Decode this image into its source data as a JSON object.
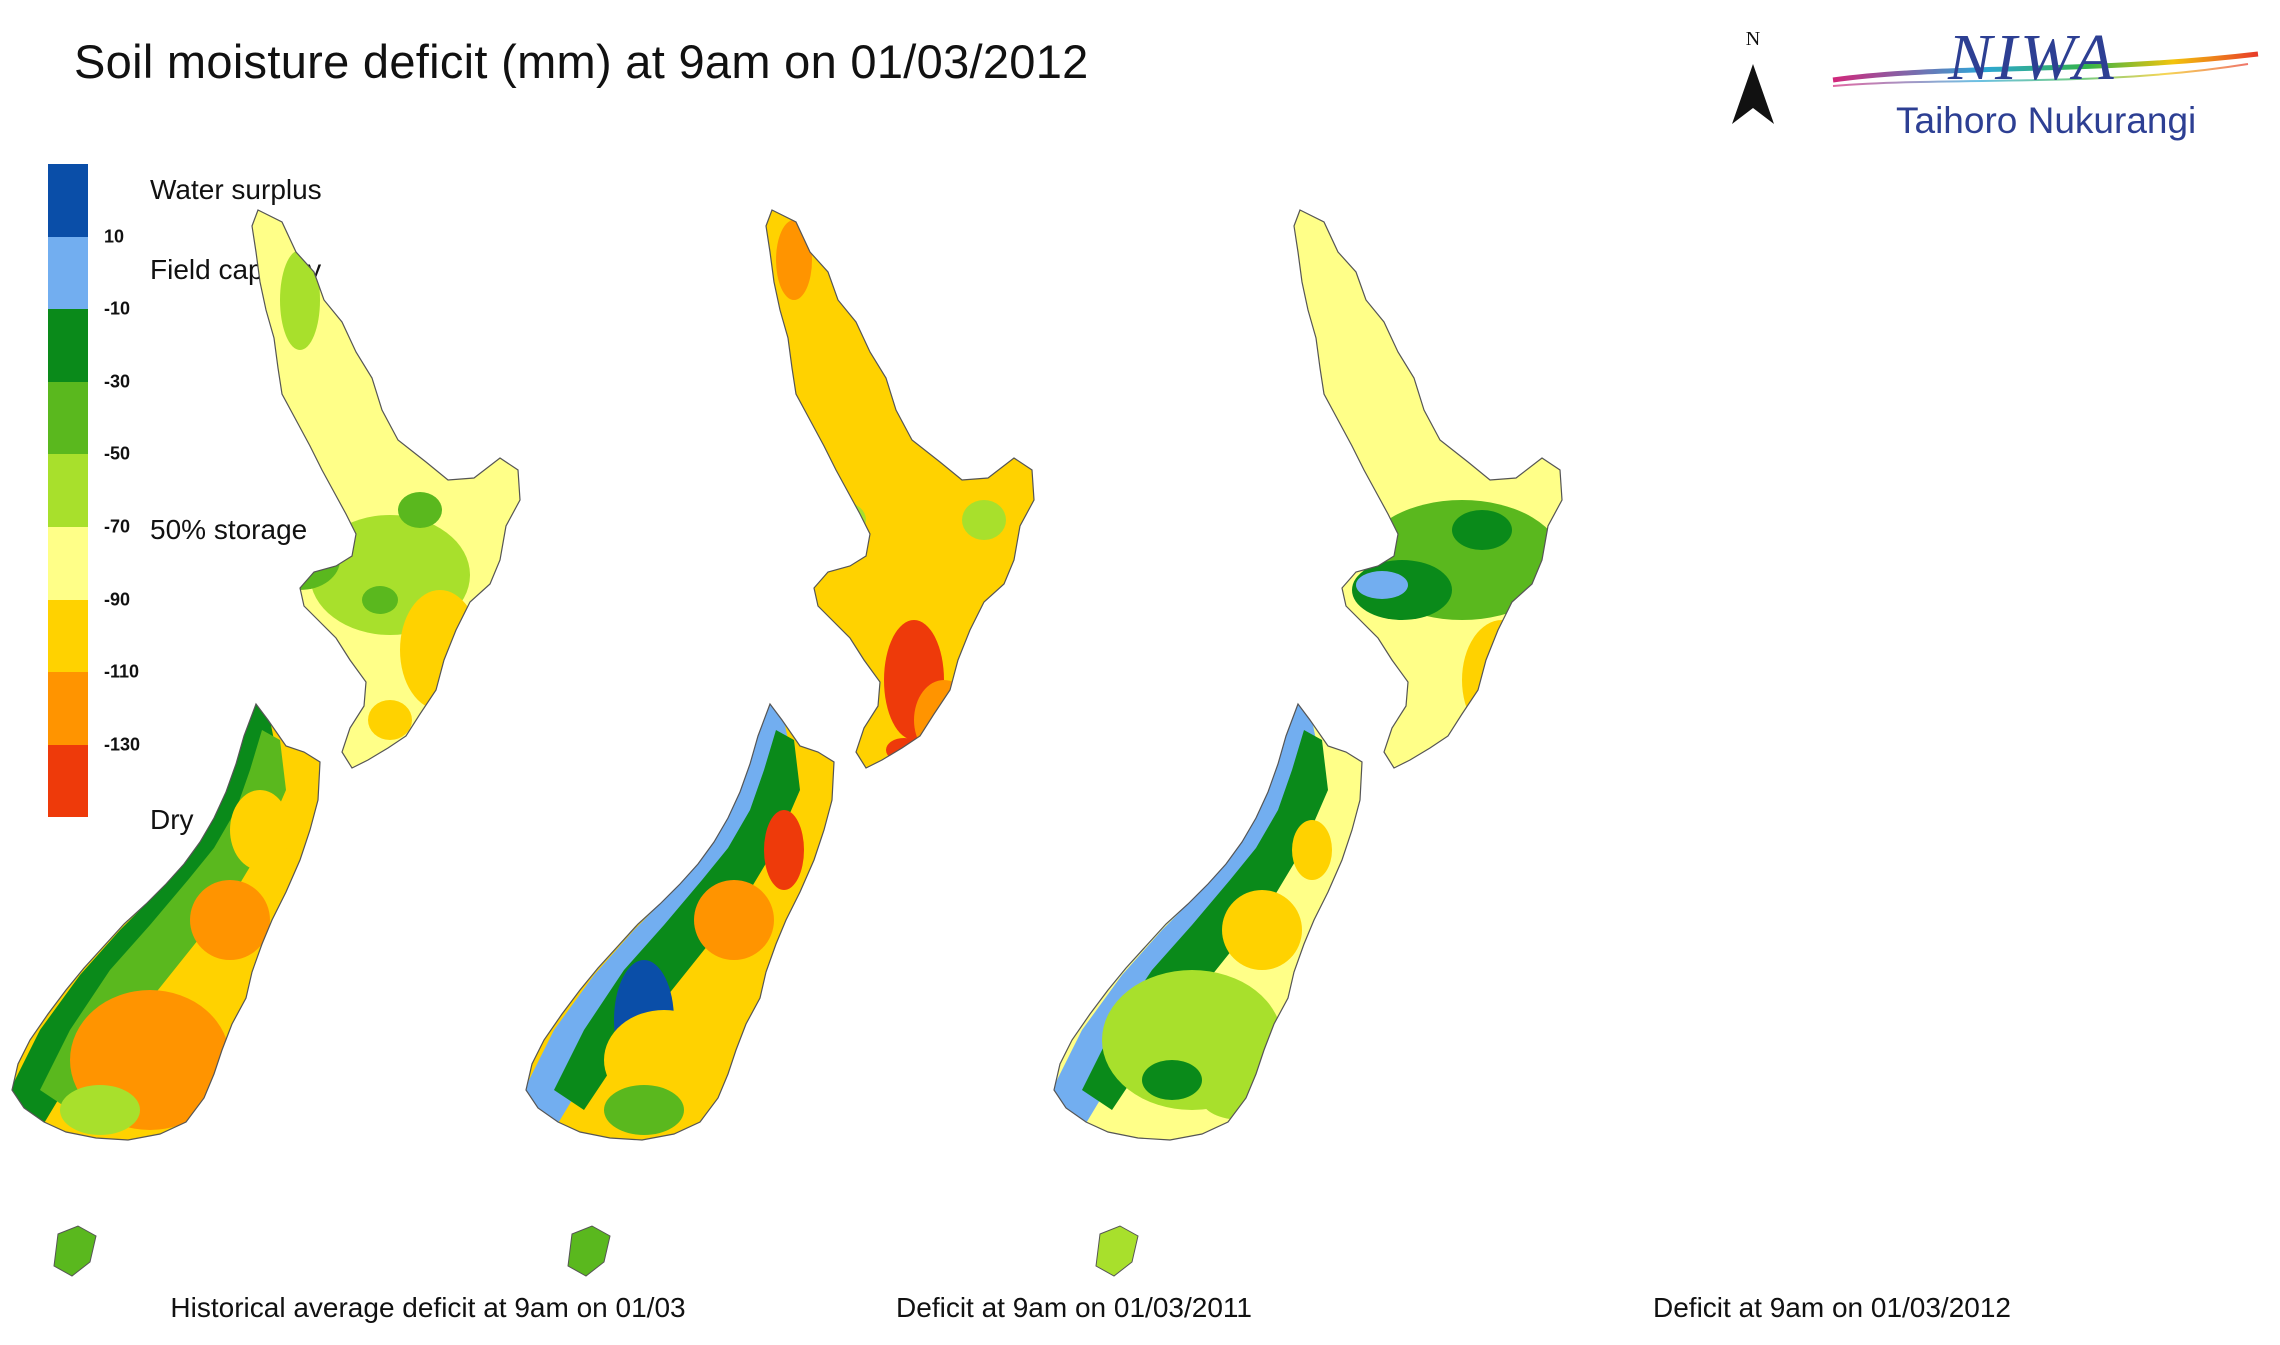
{
  "title": "Soil moisture deficit (mm) at  9am on 01/03/2012",
  "north_label": "N",
  "logo": {
    "brand": "NIWA",
    "tagline": "Taihoro Nukurangi"
  },
  "legend": {
    "colors": [
      "#0a4ea8",
      "#72aef0",
      "#0a8a1a",
      "#5ab81e",
      "#a8e02c",
      "#ffff88",
      "#ffd200",
      "#ff9400",
      "#ee3a0a"
    ],
    "ticks": [
      "10",
      "-10",
      "-30",
      "-50",
      "-70",
      "-90",
      "-110",
      "-130"
    ],
    "labels": {
      "surplus": "Water surplus",
      "field": "Field capacity",
      "half": "50% storage",
      "dry": "Dry"
    }
  },
  "maps": [
    {
      "caption": "Historical average deficit at  9am on 01/03"
    },
    {
      "caption": "Deficit at  9am on 01/03/2011"
    },
    {
      "caption": "Deficit at  9am on 01/03/2012"
    }
  ]
}
